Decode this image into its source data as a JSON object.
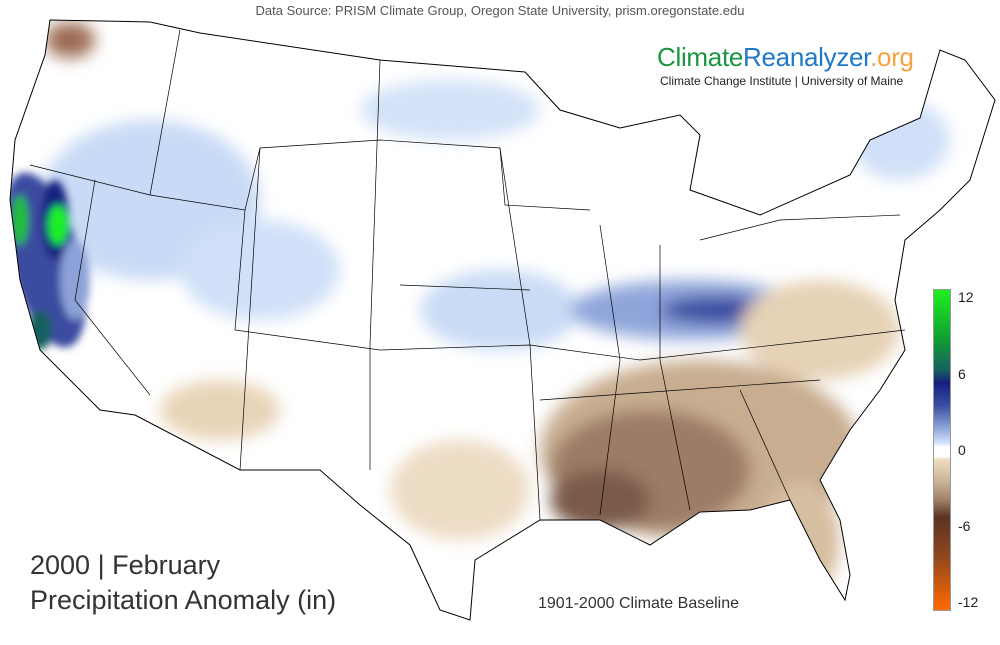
{
  "header": {
    "data_source": "Data Source: PRISM Climate Group, Oregon State University, prism.oregonstate.edu"
  },
  "logo": {
    "part1": "Climate",
    "part2": "Reanalyzer",
    ".org": ".org",
    "part3": ".org",
    "institution": "Climate Change Institute | University of Maine"
  },
  "title": {
    "line1": "2000 | February",
    "line2": "Precipitation Anomaly (in)"
  },
  "baseline": "1901-2000 Climate Baseline",
  "colorbar": {
    "ticks": [
      "12",
      "6",
      "0",
      "-6",
      "-12"
    ],
    "range": [
      -12,
      12
    ],
    "colors": {
      "max": "#1ff021",
      "high": "#14207f",
      "zero": "#ffffff",
      "low": "#5a3324",
      "min": "#ff6a00"
    }
  }
}
